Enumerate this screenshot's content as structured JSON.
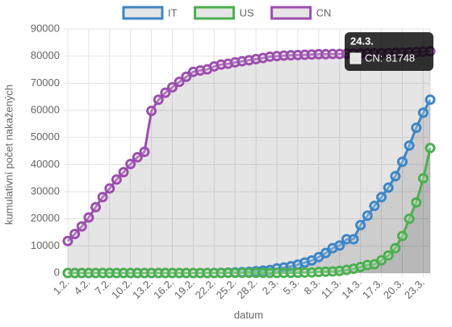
{
  "chart_data": {
    "type": "line",
    "x_label": "datum",
    "y_label": "kumulativní počet nakažených",
    "categories": [
      "1.2.",
      null,
      null,
      "4.2.",
      null,
      null,
      "7.2.",
      null,
      null,
      "10.2.",
      null,
      null,
      "13.2.",
      null,
      null,
      "16.2.",
      null,
      null,
      "19.2.",
      null,
      null,
      "22.2.",
      null,
      null,
      "25.2.",
      null,
      null,
      "28.2.",
      null,
      null,
      "2.3.",
      null,
      null,
      "5.3.",
      null,
      null,
      "8.3.",
      null,
      null,
      "11.3.",
      null,
      null,
      "14.3.",
      null,
      null,
      "17.3.",
      null,
      null,
      "20.3.",
      null,
      null,
      "23.3.",
      null
    ],
    "series": [
      {
        "name": "IT",
        "color": "#3d85c6",
        "values": [
          2,
          2,
          2,
          2,
          2,
          2,
          3,
          3,
          3,
          3,
          3,
          3,
          3,
          3,
          3,
          3,
          3,
          3,
          3,
          3,
          3,
          20,
          62,
          155,
          229,
          322,
          453,
          655,
          888,
          1128,
          1694,
          2036,
          2502,
          3089,
          3858,
          4636,
          5883,
          7375,
          9172,
          10149,
          12462,
          12462,
          17660,
          21157,
          24747,
          27980,
          31506,
          35713,
          41035,
          47021,
          53578,
          59138,
          63927
        ]
      },
      {
        "name": "US",
        "color": "#4caf50",
        "values": [
          6,
          8,
          11,
          11,
          12,
          12,
          12,
          12,
          12,
          12,
          13,
          13,
          13,
          13,
          13,
          13,
          13,
          13,
          13,
          13,
          15,
          15,
          15,
          51,
          51,
          57,
          58,
          60,
          68,
          30,
          32,
          55,
          74,
          107,
          184,
          237,
          403,
          519,
          594,
          782,
          1147,
          1586,
          2219,
          2978,
          3212,
          4679,
          6512,
          9169,
          13663,
          20030,
          26025,
          34944,
          46096
        ]
      },
      {
        "name": "CN",
        "color": "#9b4fad",
        "values": [
          11800,
          14400,
          17200,
          20500,
          24300,
          28000,
          31200,
          34500,
          37200,
          40200,
          42700,
          44700,
          59800,
          63900,
          66500,
          68500,
          70500,
          72400,
          74200,
          74700,
          75100,
          76200,
          76900,
          77200,
          77700,
          78100,
          78500,
          78900,
          79300,
          79800,
          80000,
          80200,
          80300,
          80400,
          80500,
          80600,
          80700,
          80700,
          80800,
          80800,
          80900,
          80900,
          81000,
          81000,
          81000,
          81100,
          81100,
          81200,
          81300,
          81400,
          81500,
          81600,
          81748
        ]
      }
    ],
    "ylim": [
      0,
      90000
    ],
    "yticks": [
      0,
      10000,
      20000,
      30000,
      40000,
      50000,
      60000,
      70000,
      80000,
      90000
    ],
    "grid": true,
    "legend": "top",
    "tooltip": {
      "title": "24.3.",
      "label": "CN: 81748"
    }
  }
}
